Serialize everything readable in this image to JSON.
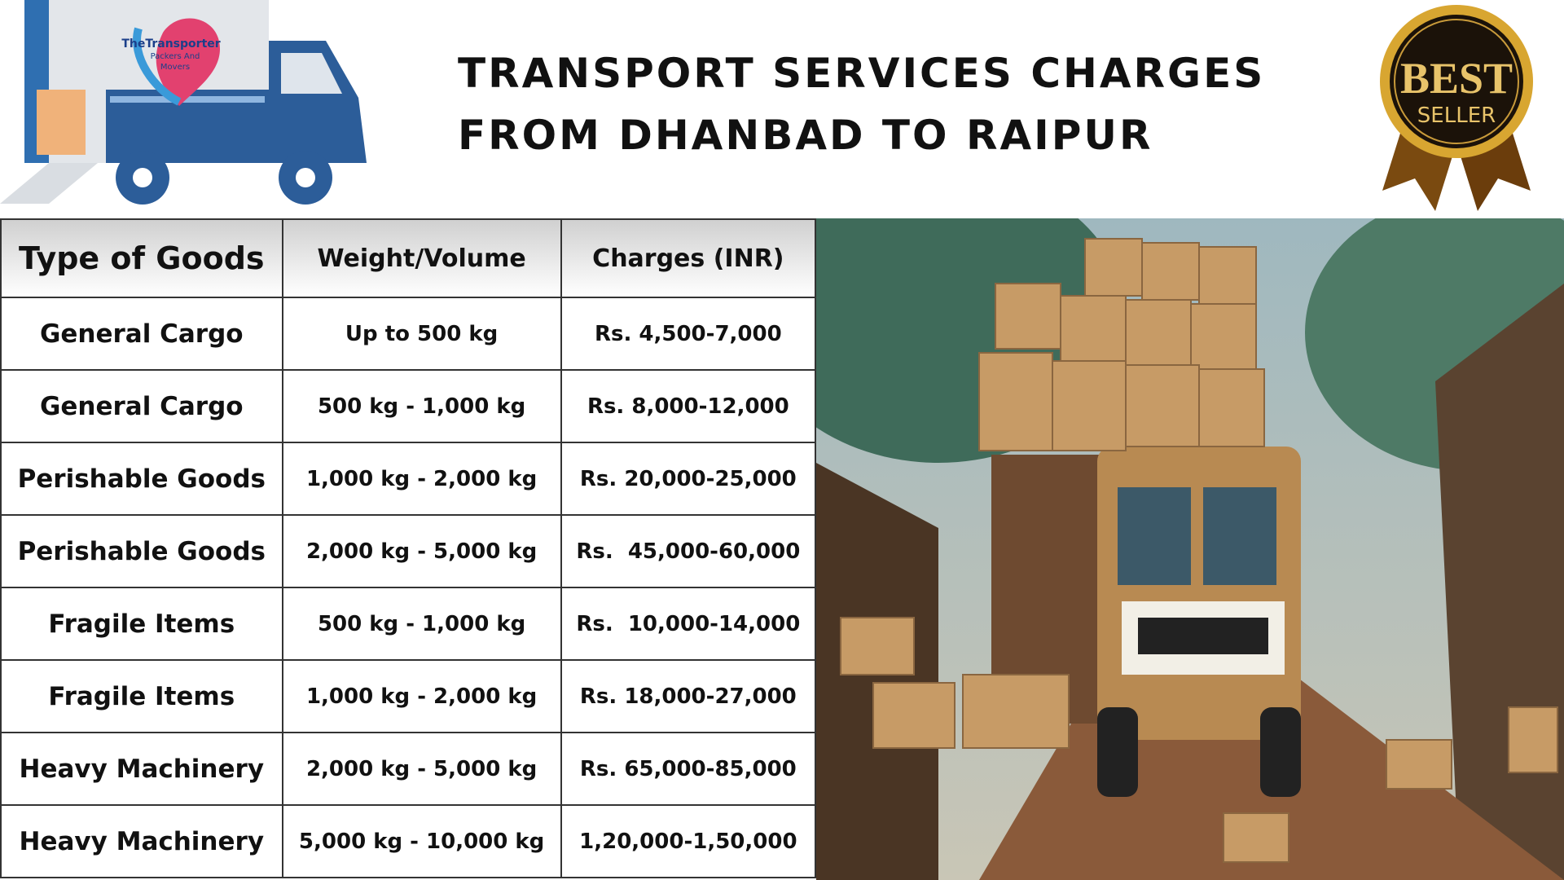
{
  "header": {
    "title_line1": "TRANSPORT SERVICES CHARGES",
    "title_line2": "FROM DHANBAD TO RAIPUR",
    "logo": {
      "line1": "TheTransporter",
      "line2": "Packers And",
      "line3": "Movers"
    },
    "badge": {
      "top": "BEST",
      "bottom": "SELLER"
    }
  },
  "table": {
    "columns": [
      "Type of Goods",
      "Weight/Volume",
      "Charges (INR)"
    ],
    "rows": [
      [
        "General Cargo",
        "Up to 500 kg",
        "Rs. 4,500-7,000"
      ],
      [
        "General Cargo",
        "500 kg - 1,000 kg",
        "Rs. 8,000-12,000"
      ],
      [
        "Perishable Goods",
        "1,000 kg - 2,000 kg",
        "Rs. 20,000-25,000"
      ],
      [
        "Perishable Goods",
        "2,000 kg - 5,000 kg",
        "Rs.  45,000-60,000"
      ],
      [
        "Fragile Items",
        "500 kg - 1,000 kg",
        "Rs.  10,000-14,000"
      ],
      [
        "Fragile Items",
        "1,000 kg - 2,000 kg",
        "Rs. 18,000-27,000"
      ],
      [
        "Heavy Machinery",
        "2,000 kg - 5,000 kg",
        "Rs. 65,000-85,000"
      ],
      [
        "Heavy Machinery",
        "5,000 kg - 10,000 kg",
        "1,20,000-1,50,000"
      ]
    ]
  }
}
